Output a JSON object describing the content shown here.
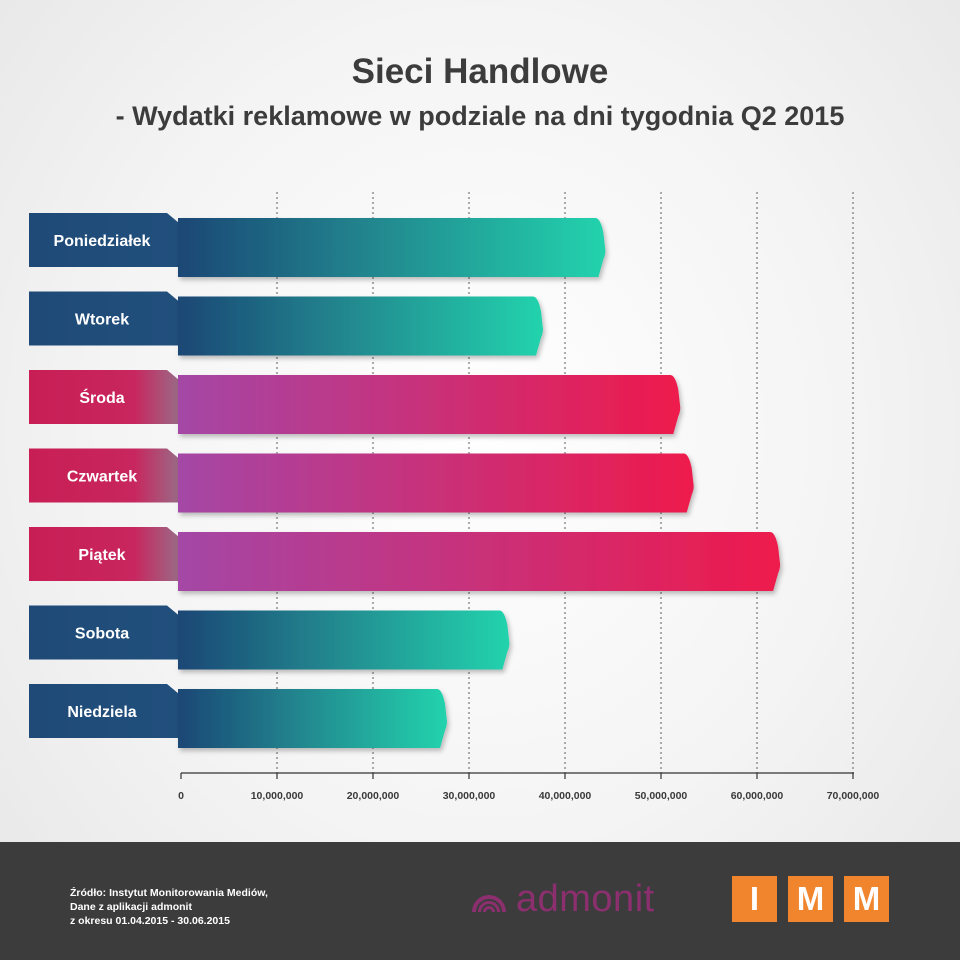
{
  "chart_data": {
    "type": "bar",
    "orientation": "horizontal",
    "title": "Sieci Handlowe",
    "subtitle": "- Wydatki reklamowe w podziale na dni tygodnia Q2 2015",
    "categories": [
      "Poniedziałek",
      "Wtorek",
      "Środa",
      "Czwartek",
      "Piątek",
      "Sobota",
      "Niedziela"
    ],
    "values": [
      44000000,
      37500000,
      51800000,
      53200000,
      62200000,
      34000000,
      27500000
    ],
    "xlim": [
      0,
      70000000
    ],
    "xticks": [
      0,
      10000000,
      20000000,
      30000000,
      40000000,
      50000000,
      60000000,
      70000000
    ],
    "xtick_labels": [
      "0",
      "10,000,000",
      "20,000,000",
      "30,000,000",
      "40,000,000",
      "50,000,000",
      "60,000,000",
      "70,000,000"
    ],
    "grid": "vertical dotted",
    "colors": {
      "teal_start": "#1e4775",
      "teal_end": "#23d3ad",
      "pink_start": "#a447a6",
      "pink_end": "#ee1a4c",
      "teal_label": "#1f4a78",
      "pink_label": "#c81e55"
    },
    "highlight_categories": [
      "Środa",
      "Czwartek",
      "Piątek"
    ]
  },
  "footer": {
    "source_lines": [
      "Źródło: Instytut Monitorowania Mediów,",
      "Dane z aplikacji admonit",
      "z okresu 01.04.2015 - 30.06.2015"
    ],
    "admonit_logo_text": "admonit",
    "imm_letters": [
      "I",
      "M",
      "M"
    ]
  }
}
